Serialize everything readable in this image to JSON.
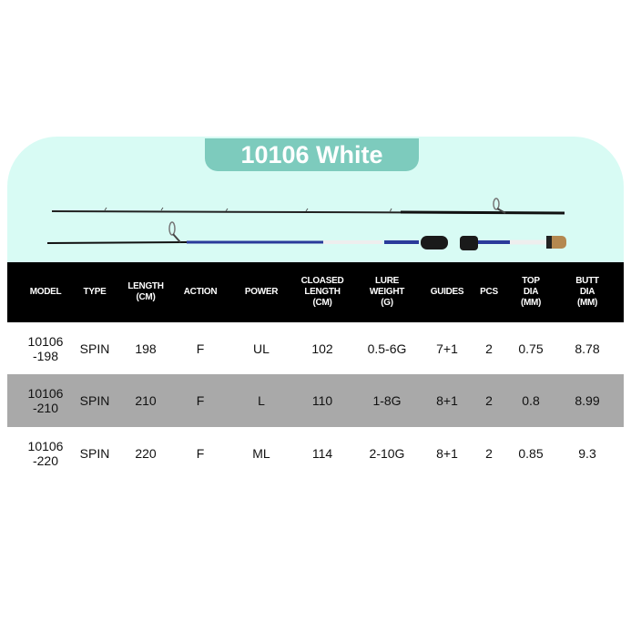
{
  "title": "10106 White",
  "colors": {
    "panel": "#d8fbf4",
    "badge": "#7dcbbd",
    "header": "#000000",
    "alt_row": "#a9a9a9"
  },
  "table": {
    "headers": [
      "MODEL",
      "TYPE",
      "LENGTH\n(CM)",
      "ACTION",
      "POWER",
      "CLOASED\nLENGTH\n(CM)",
      "LURE\nWEIGHT\n(G)",
      "GUIDES",
      "PCS",
      "TOP\nDIA\n(MM)",
      "BUTT\nDIA\n(MM)"
    ],
    "rows": [
      [
        "10106\n-198",
        "SPIN",
        "198",
        "F",
        "UL",
        "102",
        "0.5-6G",
        "7+1",
        "2",
        "0.75",
        "8.78"
      ],
      [
        "10106\n-210",
        "SPIN",
        "210",
        "F",
        "L",
        "110",
        "1-8G",
        "8+1",
        "2",
        "0.8",
        "8.99"
      ],
      [
        "10106\n-220",
        "SPIN",
        "220",
        "F",
        "ML",
        "114",
        "2-10G",
        "8+1",
        "2",
        "0.85",
        "9.3"
      ]
    ]
  }
}
